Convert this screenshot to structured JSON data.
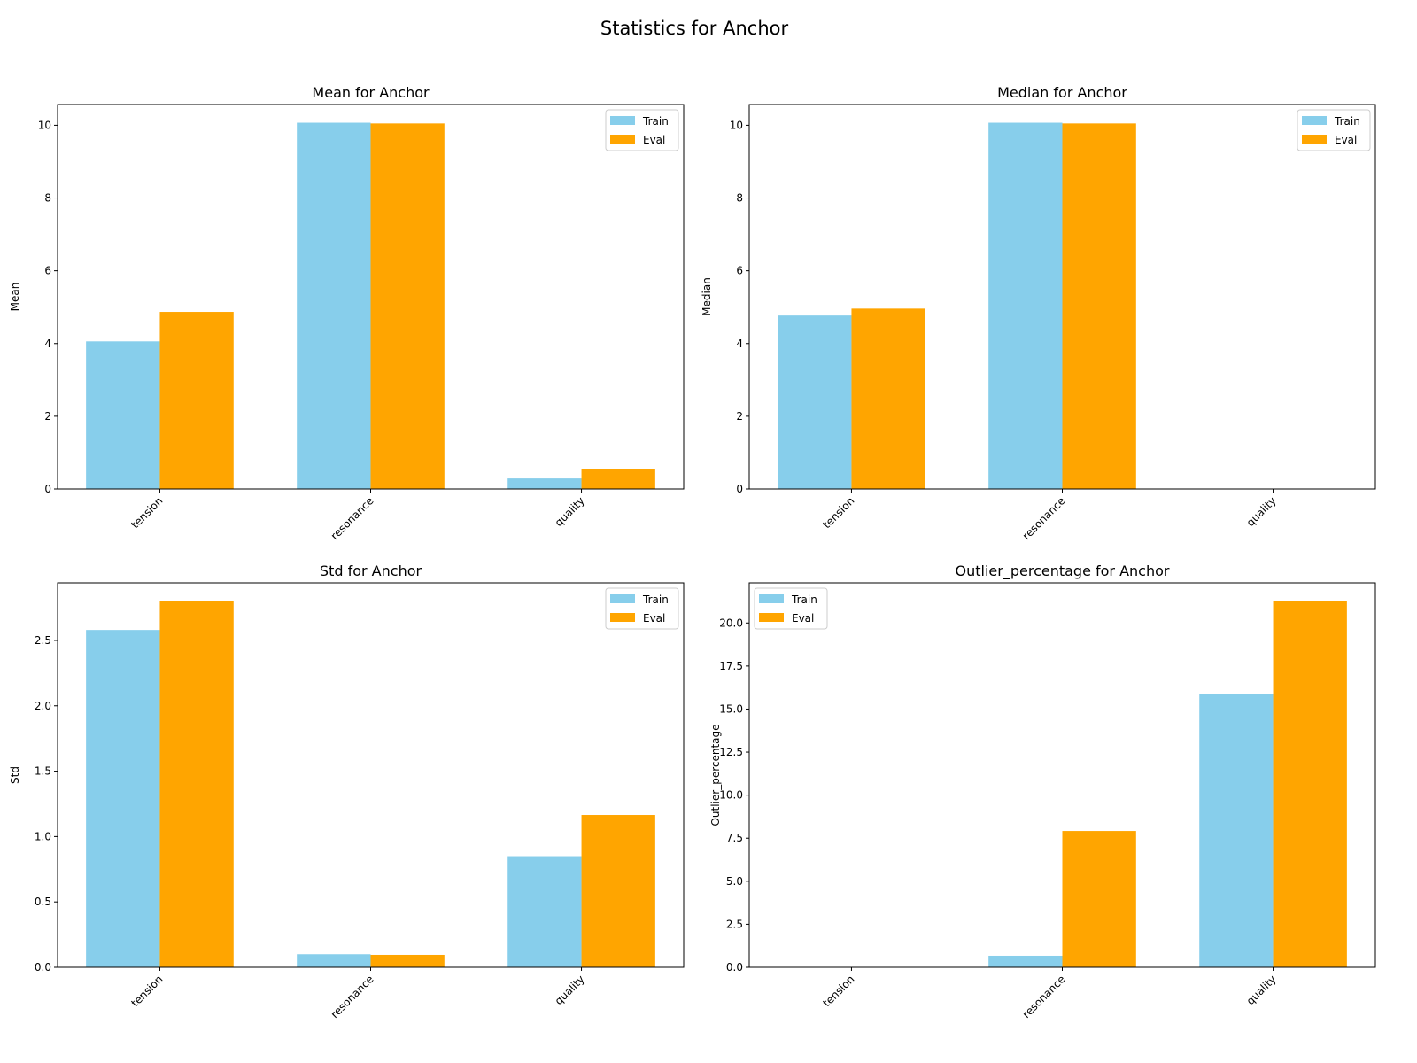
{
  "title": "Statistics for Anchor",
  "colors": {
    "Train": "#87CEEB",
    "Eval": "#FFA500"
  },
  "chart_data": [
    {
      "type": "bar",
      "title": "Mean for Anchor",
      "ylabel": "Mean",
      "categories": [
        "tension",
        "resonance",
        "quality"
      ],
      "series": [
        {
          "name": "Train",
          "values": [
            4.06,
            10.07,
            0.29
          ]
        },
        {
          "name": "Eval",
          "values": [
            4.87,
            10.05,
            0.54
          ]
        }
      ],
      "ylim": [
        0,
        10.57
      ],
      "yticks": [
        0,
        2,
        4,
        6,
        8,
        10
      ],
      "ytick_labels": [
        "0",
        "2",
        "4",
        "6",
        "8",
        "10"
      ],
      "legend": "top-right",
      "grid": false
    },
    {
      "type": "bar",
      "title": "Median for Anchor",
      "ylabel": "Median",
      "categories": [
        "tension",
        "resonance",
        "quality"
      ],
      "series": [
        {
          "name": "Train",
          "values": [
            4.77,
            10.07,
            0
          ]
        },
        {
          "name": "Eval",
          "values": [
            4.96,
            10.05,
            0
          ]
        }
      ],
      "ylim": [
        0,
        10.57
      ],
      "yticks": [
        0,
        2,
        4,
        6,
        8,
        10
      ],
      "ytick_labels": [
        "0",
        "2",
        "4",
        "6",
        "8",
        "10"
      ],
      "legend": "top-right",
      "grid": false
    },
    {
      "type": "bar",
      "title": "Std for Anchor",
      "ylabel": "Std",
      "categories": [
        "tension",
        "resonance",
        "quality"
      ],
      "series": [
        {
          "name": "Train",
          "values": [
            2.58,
            0.1,
            0.85
          ]
        },
        {
          "name": "Eval",
          "values": [
            2.8,
            0.095,
            1.165
          ]
        }
      ],
      "ylim": [
        0,
        2.94
      ],
      "yticks": [
        0,
        0.5,
        1,
        1.5,
        2,
        2.5
      ],
      "ytick_labels": [
        "0.0",
        "0.5",
        "1.0",
        "1.5",
        "2.0",
        "2.5"
      ],
      "legend": "top-right",
      "grid": false
    },
    {
      "type": "bar",
      "title": "Outlier_percentage for Anchor",
      "ylabel": "Outlier_percentage",
      "categories": [
        "tension",
        "resonance",
        "quality"
      ],
      "series": [
        {
          "name": "Train",
          "values": [
            0,
            0.67,
            15.89
          ]
        },
        {
          "name": "Eval",
          "values": [
            0,
            7.92,
            21.28
          ]
        }
      ],
      "ylim": [
        0,
        22.33
      ],
      "yticks": [
        0,
        2.5,
        5,
        7.5,
        10,
        12.5,
        15,
        17.5,
        20
      ],
      "ytick_labels": [
        "0.0",
        "2.5",
        "5.0",
        "7.5",
        "10.0",
        "12.5",
        "15.0",
        "17.5",
        "20.0"
      ],
      "legend": "top-left",
      "grid": false
    }
  ]
}
